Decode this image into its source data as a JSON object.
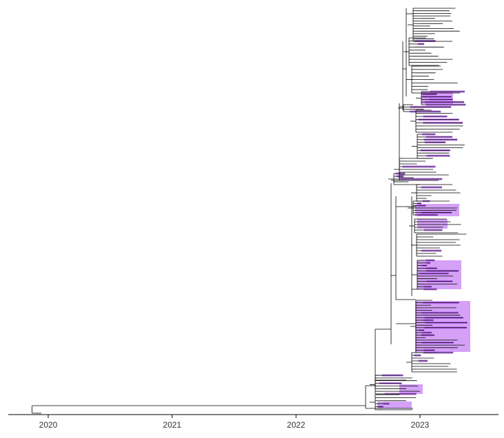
{
  "figure": {
    "type": "time-scaled phylogenetic tree",
    "x_axis": {
      "ticks": [
        "2020",
        "2021",
        "2022",
        "2023"
      ],
      "tick_values": [
        2020,
        2021,
        2022,
        2023
      ],
      "range": [
        2019.8,
        2023.6
      ]
    },
    "root_date": 2019.87,
    "tip_count_approx": 330,
    "highlight_color": "#b054f0",
    "branch_color": "#000000",
    "axis_color": "#000000"
  }
}
